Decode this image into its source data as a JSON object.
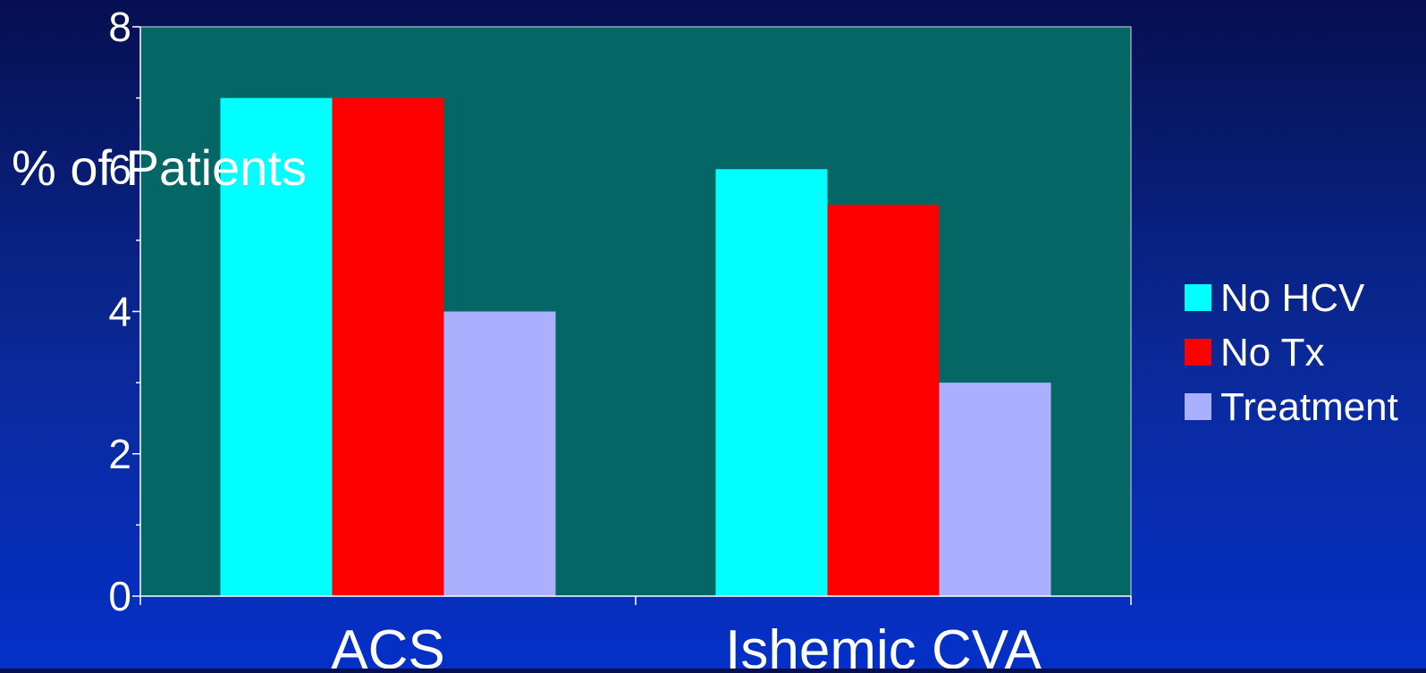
{
  "chart_data": {
    "type": "bar",
    "title": "",
    "xlabel": "",
    "ylabel": "% of Patients",
    "ylim": [
      0,
      8
    ],
    "y_major_ticks": [
      0,
      2,
      4,
      6,
      8
    ],
    "y_minor_ticks": [
      1,
      3,
      5,
      7
    ],
    "categories": [
      "ACS",
      "Ishemic CVA"
    ],
    "series": [
      {
        "name": "No HCV",
        "color": "#00FFFF",
        "values": [
          7.0,
          6.0
        ]
      },
      {
        "name": "No Tx",
        "color": "#FF0000",
        "values": [
          7.0,
          5.5
        ]
      },
      {
        "name": "Treatment",
        "color": "#AAAFFF",
        "values": [
          4.0,
          3.0
        ]
      }
    ],
    "grid": false,
    "legend_position": "right",
    "plot_background": "#056666"
  }
}
